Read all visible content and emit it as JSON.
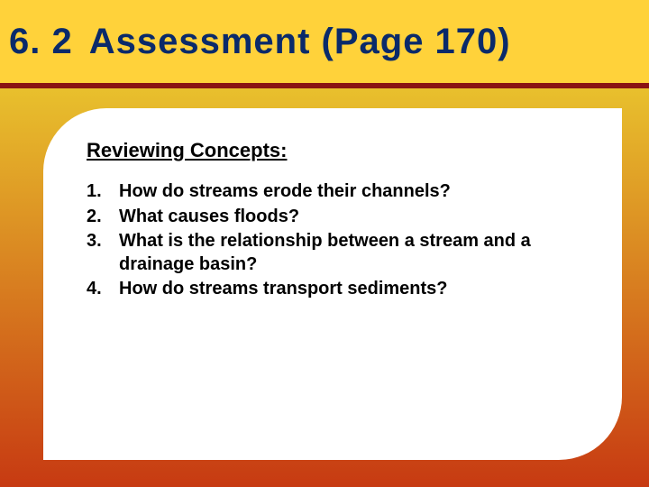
{
  "colors": {
    "header_bg": "#ffd23a",
    "header_text": "#0a2a6a",
    "divider": "#8a1313",
    "body_bg_top": "#e8c02d",
    "body_bg_bottom": "#c73a12",
    "card_bg": "#ffffff",
    "text": "#000000"
  },
  "header": {
    "section_number": "6. 2",
    "title": "Assessment (Page 170)"
  },
  "subtitle": "Reviewing Concepts:",
  "questions": [
    {
      "num": "1.",
      "text": "How do streams erode their channels?"
    },
    {
      "num": "2.",
      "text": "What causes floods?"
    },
    {
      "num": "3.",
      "text": "What is the relationship between a stream and a drainage basin?"
    },
    {
      "num": "4.",
      "text": "How do streams transport sediments?"
    }
  ],
  "fonts": {
    "header_size_pt": 30,
    "subtitle_size_pt": 17,
    "body_size_pt": 15
  }
}
